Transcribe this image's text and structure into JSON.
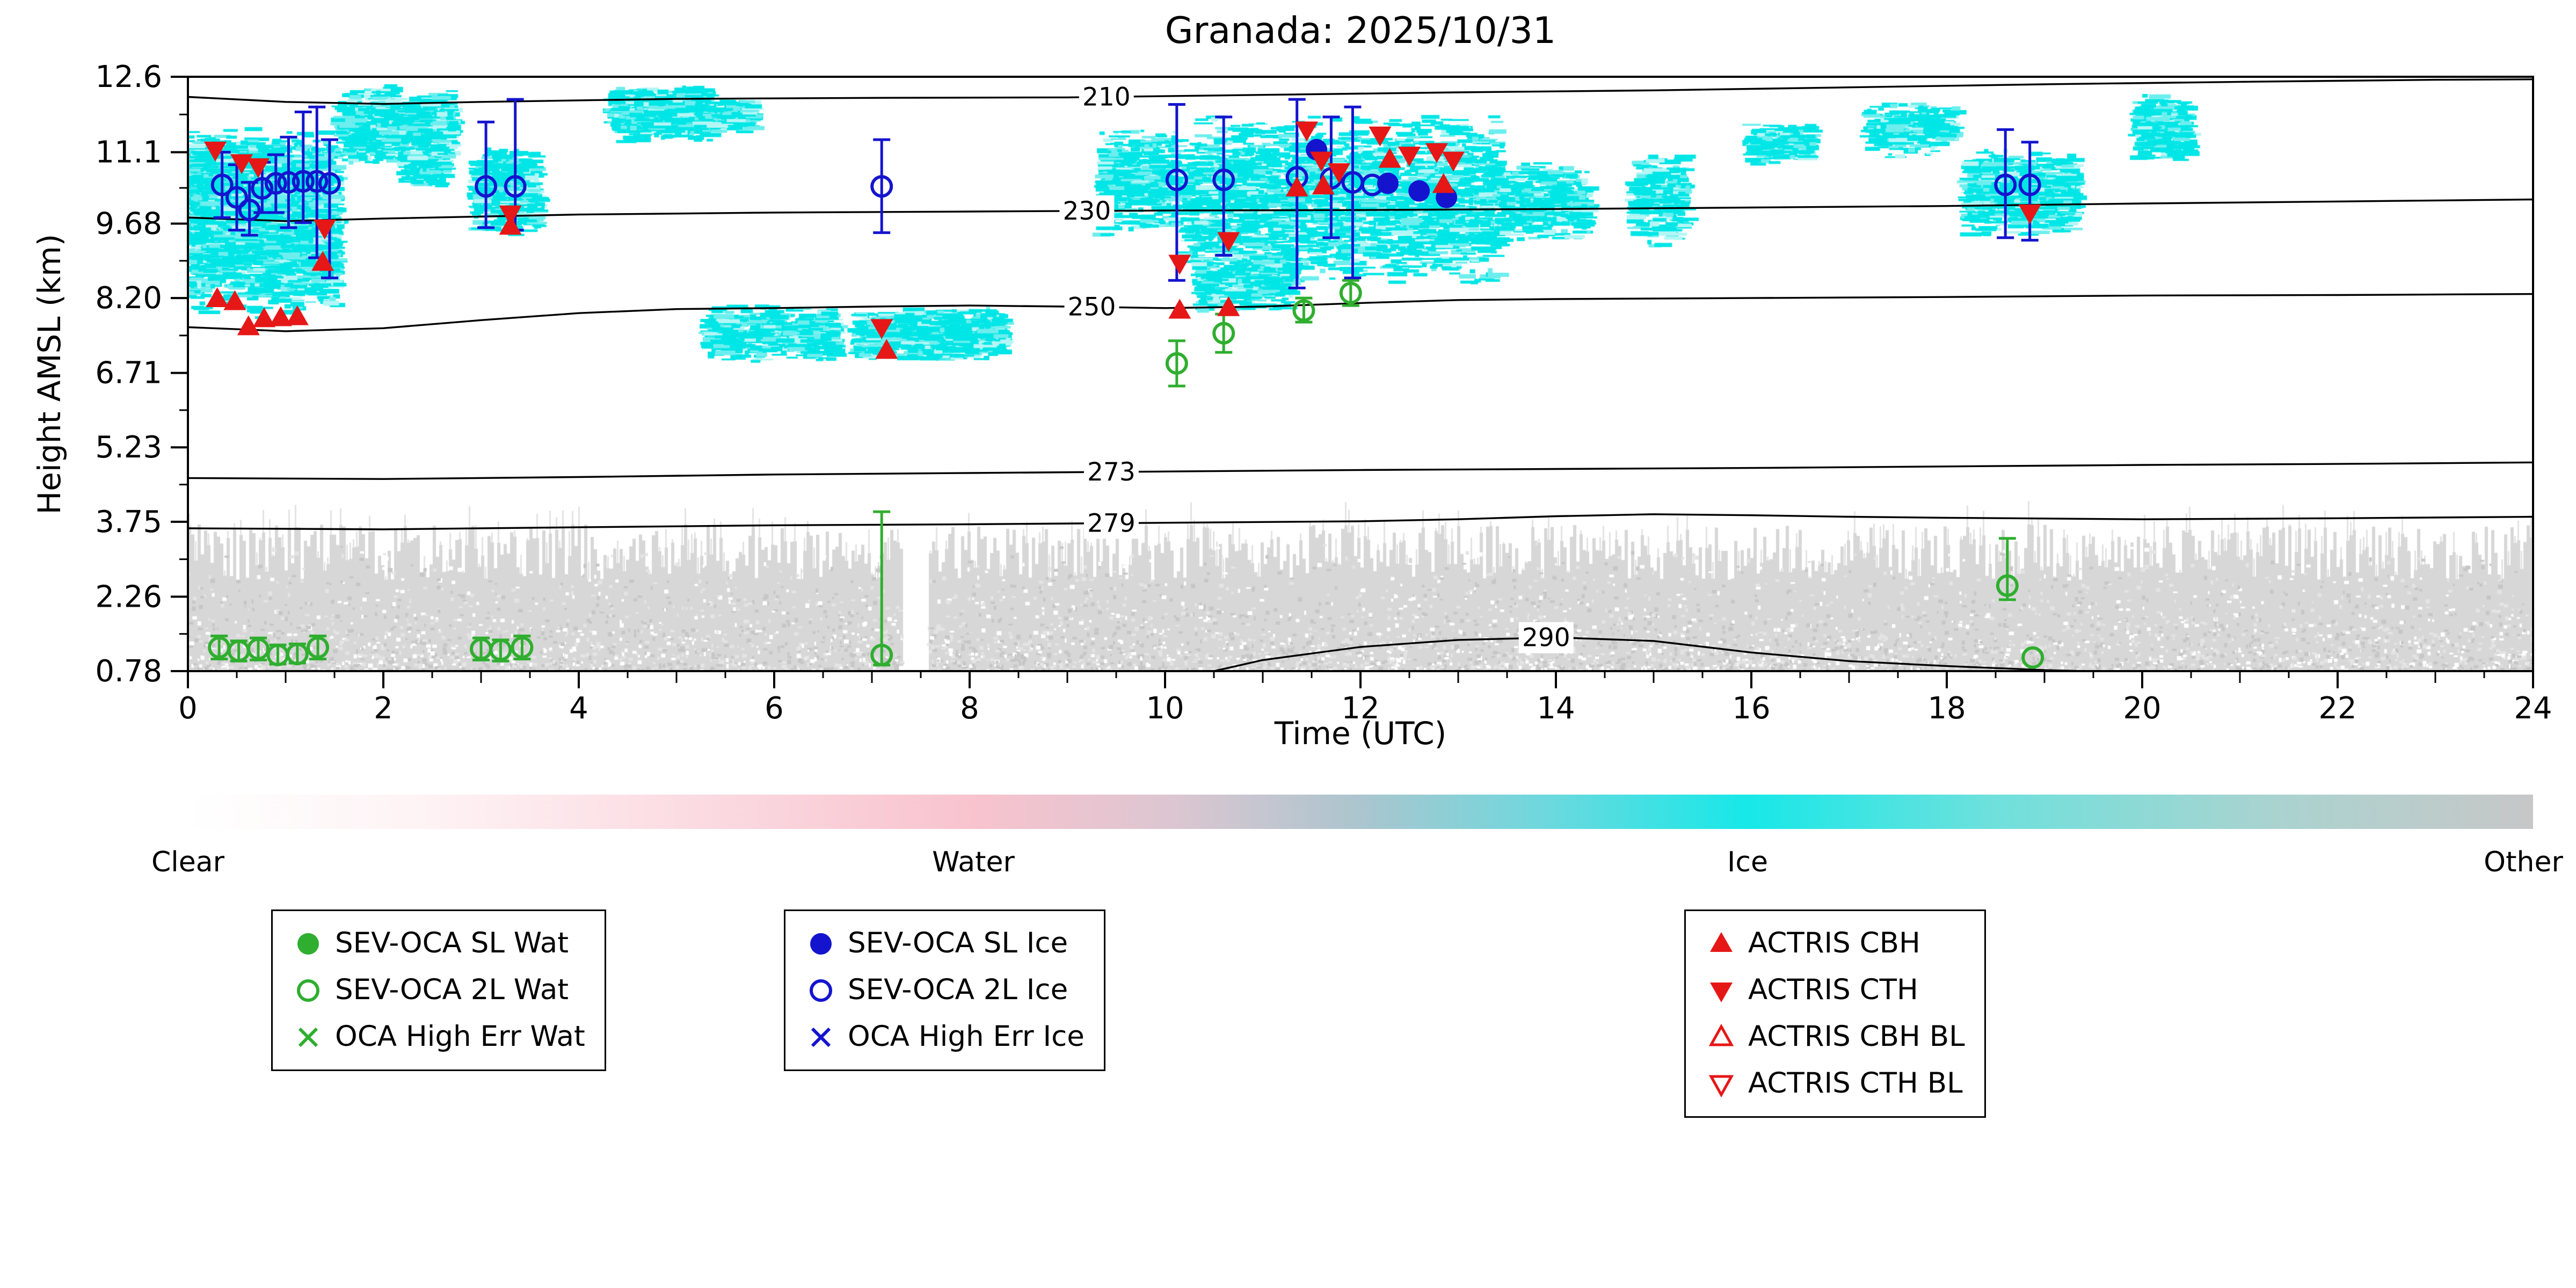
{
  "title": "Granada: 2025/10/31",
  "colorbar": {
    "labels": [
      "Clear",
      "Water",
      "Ice",
      "Other"
    ],
    "stops": [
      [
        "0%",
        "#ffffff"
      ],
      [
        "10%",
        "#fef3f5"
      ],
      [
        "22%",
        "#fbdae1"
      ],
      [
        "33.5%",
        "#f8c3ce"
      ],
      [
        "42%",
        "#dcc6d1"
      ],
      [
        "50%",
        "#abc5ce"
      ],
      [
        "58%",
        "#6cd9de"
      ],
      [
        "66.5%",
        "#17e8e8"
      ],
      [
        "77%",
        "#6fe0dc"
      ],
      [
        "89%",
        "#aad3d0"
      ],
      [
        "100%",
        "#c7c7c7"
      ]
    ]
  },
  "legends": [
    {
      "entries": [
        {
          "marker": "circle-filled",
          "color": "#2fae2f",
          "label": "SEV-OCA SL Wat"
        },
        {
          "marker": "circle-open",
          "color": "#2fae2f",
          "label": "SEV-OCA 2L Wat"
        },
        {
          "marker": "x-mark",
          "color": "#2fae2f",
          "label": "OCA High Err Wat"
        }
      ]
    },
    {
      "entries": [
        {
          "marker": "circle-filled",
          "color": "#1414cf",
          "label": "SEV-OCA SL Ice"
        },
        {
          "marker": "circle-open",
          "color": "#1414cf",
          "label": "SEV-OCA 2L Ice"
        },
        {
          "marker": "x-mark",
          "color": "#1414cf",
          "label": "OCA High Err Ice"
        }
      ]
    },
    {
      "entries": [
        {
          "marker": "triangle-up-filled",
          "color": "#e61717",
          "label": "ACTRIS CBH"
        },
        {
          "marker": "triangle-down-filled",
          "color": "#e61717",
          "label": "ACTRIS CTH"
        },
        {
          "marker": "triangle-up-open",
          "color": "#e61717",
          "label": "ACTRIS CBH BL"
        },
        {
          "marker": "triangle-down-open",
          "color": "#e61717",
          "label": "ACTRIS CTH BL"
        }
      ]
    }
  ],
  "chart_data": {
    "type": "scatter",
    "title": "Granada: 2025/10/31",
    "xlabel": "Time (UTC)",
    "ylabel": "Height AMSL (km)",
    "xlim": [
      0,
      24
    ],
    "ylim": [
      0.78,
      12.6
    ],
    "x_ticks": [
      {
        "v": 0,
        "label": "0"
      },
      {
        "v": 2,
        "label": "2"
      },
      {
        "v": 4,
        "label": "4"
      },
      {
        "v": 6,
        "label": "6"
      },
      {
        "v": 8,
        "label": "8"
      },
      {
        "v": 10,
        "label": "10"
      },
      {
        "v": 12,
        "label": "12"
      },
      {
        "v": 14,
        "label": "14"
      },
      {
        "v": 16,
        "label": "16"
      },
      {
        "v": 18,
        "label": "18"
      },
      {
        "v": 20,
        "label": "20"
      },
      {
        "v": 22,
        "label": "22"
      },
      {
        "v": 24,
        "label": "24"
      }
    ],
    "y_ticks": [
      {
        "v": 12.6,
        "label": "12.6"
      },
      {
        "v": 11.1,
        "label": "11.1"
      },
      {
        "v": 9.68,
        "label": "9.68"
      },
      {
        "v": 8.2,
        "label": "8.20"
      },
      {
        "v": 6.71,
        "label": "6.71"
      },
      {
        "v": 5.23,
        "label": "5.23"
      },
      {
        "v": 3.75,
        "label": "3.75"
      },
      {
        "v": 2.26,
        "label": "2.26"
      },
      {
        "v": 0.78,
        "label": "0.78"
      }
    ],
    "isotherms": [
      {
        "label": "210",
        "label_t": 9.4,
        "pts": [
          [
            0,
            12.2
          ],
          [
            1,
            12.1
          ],
          [
            2,
            12.06
          ],
          [
            3,
            12.1
          ],
          [
            5,
            12.16
          ],
          [
            7,
            12.18
          ],
          [
            9,
            12.19
          ],
          [
            11,
            12.24
          ],
          [
            13,
            12.29
          ],
          [
            15,
            12.33
          ],
          [
            17,
            12.39
          ],
          [
            19,
            12.45
          ],
          [
            21,
            12.5
          ],
          [
            23,
            12.54
          ],
          [
            24,
            12.55
          ]
        ]
      },
      {
        "label": "230",
        "label_t": 9.2,
        "pts": [
          [
            0,
            9.8
          ],
          [
            1,
            9.73
          ],
          [
            2,
            9.78
          ],
          [
            4,
            9.86
          ],
          [
            6,
            9.9
          ],
          [
            8,
            9.92
          ],
          [
            10,
            9.94
          ],
          [
            12,
            9.95
          ],
          [
            14,
            9.97
          ],
          [
            16,
            10.0
          ],
          [
            18,
            10.03
          ],
          [
            20,
            10.08
          ],
          [
            22,
            10.12
          ],
          [
            24,
            10.16
          ]
        ]
      },
      {
        "label": "250",
        "label_t": 9.25,
        "pts": [
          [
            0,
            7.62
          ],
          [
            1,
            7.54
          ],
          [
            2,
            7.6
          ],
          [
            3,
            7.76
          ],
          [
            4,
            7.9
          ],
          [
            5,
            7.98
          ],
          [
            6,
            8.0
          ],
          [
            7,
            8.03
          ],
          [
            8,
            8.05
          ],
          [
            9,
            8.03
          ],
          [
            10,
            8.0
          ],
          [
            11,
            8.03
          ],
          [
            12,
            8.1
          ],
          [
            13,
            8.16
          ],
          [
            14,
            8.18
          ],
          [
            16,
            8.2
          ],
          [
            18,
            8.22
          ],
          [
            20,
            8.25
          ],
          [
            22,
            8.26
          ],
          [
            24,
            8.28
          ]
        ]
      },
      {
        "label": "273",
        "label_t": 9.45,
        "pts": [
          [
            0,
            4.62
          ],
          [
            2,
            4.6
          ],
          [
            4,
            4.64
          ],
          [
            6,
            4.69
          ],
          [
            8,
            4.72
          ],
          [
            10,
            4.75
          ],
          [
            12,
            4.78
          ],
          [
            14,
            4.8
          ],
          [
            16,
            4.82
          ],
          [
            18,
            4.85
          ],
          [
            20,
            4.88
          ],
          [
            22,
            4.9
          ],
          [
            24,
            4.93
          ]
        ]
      },
      {
        "label": "279",
        "label_t": 9.45,
        "pts": [
          [
            0,
            3.62
          ],
          [
            2,
            3.6
          ],
          [
            4,
            3.64
          ],
          [
            6,
            3.68
          ],
          [
            8,
            3.7
          ],
          [
            10,
            3.73
          ],
          [
            12,
            3.76
          ],
          [
            13,
            3.8
          ],
          [
            14,
            3.86
          ],
          [
            15,
            3.9
          ],
          [
            16,
            3.88
          ],
          [
            17,
            3.85
          ],
          [
            18,
            3.83
          ],
          [
            20,
            3.8
          ],
          [
            22,
            3.82
          ],
          [
            24,
            3.85
          ]
        ]
      },
      {
        "label": "290",
        "label_t": 13.9,
        "pts": [
          [
            10.5,
            0.78
          ],
          [
            11,
            1.0
          ],
          [
            12,
            1.26
          ],
          [
            13,
            1.4
          ],
          [
            14,
            1.45
          ],
          [
            15,
            1.38
          ],
          [
            16,
            1.15
          ],
          [
            17,
            0.98
          ],
          [
            18,
            0.88
          ],
          [
            19,
            0.8
          ],
          [
            19.4,
            0.78
          ]
        ]
      }
    ],
    "fields": {
      "ice_color": "#00e6e6",
      "other_color": "#d0d0d0",
      "ice_blobs": [
        [
          0.0,
          1.55,
          7.8,
          11.6,
          2200
        ],
        [
          0.05,
          1.0,
          9.2,
          11.4,
          900
        ],
        [
          1.55,
          2.15,
          10.8,
          12.45,
          350
        ],
        [
          1.95,
          2.75,
          10.9,
          12.35,
          350
        ],
        [
          2.2,
          2.65,
          10.4,
          11.3,
          180
        ],
        [
          2.95,
          3.6,
          9.4,
          11.2,
          420
        ],
        [
          4.35,
          5.35,
          11.3,
          12.45,
          600
        ],
        [
          5.25,
          5.8,
          11.5,
          12.2,
          200
        ],
        [
          5.3,
          6.65,
          6.9,
          8.05,
          550
        ],
        [
          6.85,
          8.35,
          6.95,
          8.0,
          950
        ],
        [
          9.35,
          10.15,
          9.4,
          11.6,
          520
        ],
        [
          10.2,
          13.45,
          8.4,
          11.9,
          2300
        ],
        [
          10.35,
          11.3,
          7.9,
          9.2,
          420
        ],
        [
          13.45,
          14.35,
          9.3,
          10.9,
          380
        ],
        [
          14.8,
          15.35,
          9.2,
          11.1,
          260
        ],
        [
          16.0,
          16.65,
          10.8,
          11.7,
          180
        ],
        [
          17.2,
          18.1,
          11.0,
          12.1,
          280
        ],
        [
          18.2,
          19.35,
          9.4,
          11.15,
          620
        ],
        [
          19.95,
          20.5,
          10.9,
          12.3,
          260
        ]
      ],
      "other_band": {
        "base": 0.78,
        "top": 3.28,
        "noise": 0.55,
        "gap": [
          7.3,
          7.55
        ]
      }
    },
    "series": [
      {
        "name": "SEV-OCA 2L Wat",
        "marker": "circle-open",
        "color": "#2fae2f",
        "points": [
          [
            0.32,
            1.25,
            1.02,
            1.48
          ],
          [
            0.52,
            1.18,
            0.98,
            1.38
          ],
          [
            0.72,
            1.22,
            1.0,
            1.44
          ],
          [
            0.92,
            1.1,
            0.92,
            1.3
          ],
          [
            1.12,
            1.12,
            0.94,
            1.32
          ],
          [
            1.33,
            1.25,
            1.02,
            1.48
          ],
          [
            3.0,
            1.22,
            1.0,
            1.44
          ],
          [
            3.2,
            1.2,
            0.98,
            1.4
          ],
          [
            3.42,
            1.25,
            1.02,
            1.48
          ],
          [
            7.1,
            1.1,
            0.9,
            3.95
          ],
          [
            10.12,
            6.9,
            6.45,
            7.35
          ],
          [
            10.6,
            7.5,
            7.12,
            7.88
          ],
          [
            11.42,
            7.95,
            7.72,
            8.2
          ],
          [
            11.9,
            8.3,
            8.05,
            8.55
          ],
          [
            18.62,
            2.48,
            2.2,
            3.42
          ],
          [
            18.88,
            1.05
          ]
        ]
      },
      {
        "name": "SEV-OCA SL Ice",
        "marker": "circle-filled",
        "color": "#1414cf",
        "points": [
          [
            11.55,
            11.15
          ],
          [
            12.28,
            10.48
          ],
          [
            12.6,
            10.33
          ],
          [
            12.88,
            10.2
          ]
        ]
      },
      {
        "name": "SEV-OCA 2L Ice",
        "marker": "circle-open",
        "color": "#1414cf",
        "points": [
          [
            0.35,
            10.45,
            9.8,
            11.1
          ],
          [
            0.5,
            10.2,
            9.55,
            10.85
          ],
          [
            0.63,
            9.95,
            9.45,
            10.5
          ],
          [
            0.76,
            10.38,
            9.9,
            10.9
          ],
          [
            0.9,
            10.48,
            9.9,
            11.05
          ],
          [
            1.03,
            10.5,
            9.6,
            11.4
          ],
          [
            1.18,
            10.52,
            9.7,
            11.9
          ],
          [
            1.32,
            10.52,
            9.0,
            12.0
          ],
          [
            1.45,
            10.48,
            8.6,
            11.35
          ],
          [
            3.05,
            10.42,
            9.6,
            11.7
          ],
          [
            3.35,
            10.42,
            9.55,
            12.15
          ],
          [
            7.1,
            10.42,
            9.5,
            11.35
          ],
          [
            10.12,
            10.55,
            8.55,
            12.05
          ],
          [
            10.6,
            10.55,
            9.05,
            11.8
          ],
          [
            11.35,
            10.6,
            8.4,
            12.15
          ],
          [
            11.7,
            10.58,
            9.4,
            11.8
          ],
          [
            11.92,
            10.5,
            8.6,
            12.0
          ],
          [
            12.12,
            10.45
          ],
          [
            18.6,
            10.45,
            9.4,
            11.55
          ],
          [
            18.85,
            10.45,
            9.35,
            11.3
          ]
        ]
      },
      {
        "name": "ACTRIS CBH",
        "marker": "triangle-up-filled",
        "color": "#e61717",
        "points": [
          [
            0.3,
            8.18
          ],
          [
            0.48,
            8.12
          ],
          [
            0.62,
            7.62
          ],
          [
            0.78,
            7.78
          ],
          [
            0.95,
            7.8
          ],
          [
            1.12,
            7.82
          ],
          [
            1.38,
            8.9
          ],
          [
            3.3,
            9.62
          ],
          [
            7.15,
            7.15
          ],
          [
            10.15,
            7.95
          ],
          [
            10.65,
            8.0
          ],
          [
            11.35,
            10.38
          ],
          [
            11.62,
            10.42
          ],
          [
            12.3,
            10.95
          ],
          [
            12.85,
            10.45
          ]
        ]
      },
      {
        "name": "ACTRIS CTH",
        "marker": "triangle-down-filled",
        "color": "#e61717",
        "points": [
          [
            0.28,
            11.15
          ],
          [
            0.55,
            10.9
          ],
          [
            0.72,
            10.82
          ],
          [
            1.4,
            9.6
          ],
          [
            3.3,
            9.88
          ],
          [
            7.1,
            7.62
          ],
          [
            10.15,
            8.9
          ],
          [
            10.65,
            9.35
          ],
          [
            11.45,
            11.55
          ],
          [
            11.6,
            10.95
          ],
          [
            11.78,
            10.72
          ],
          [
            12.2,
            11.45
          ],
          [
            12.5,
            11.05
          ],
          [
            12.78,
            11.12
          ],
          [
            12.95,
            10.95
          ],
          [
            18.85,
            9.9
          ]
        ]
      }
    ]
  }
}
